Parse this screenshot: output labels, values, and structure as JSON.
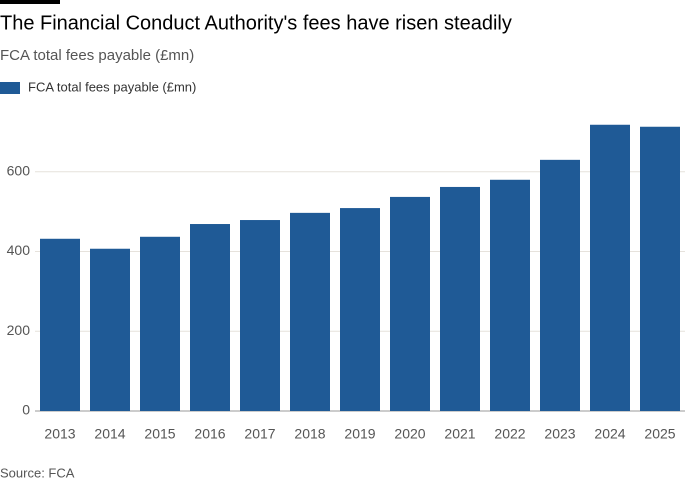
{
  "chart_data": {
    "type": "bar",
    "title": "The Financial Conduct Authority's fees have risen steadily",
    "subtitle": "FCA total fees payable (£mn)",
    "source": "Source: FCA",
    "categories": [
      "2013",
      "2014",
      "2015",
      "2016",
      "2017",
      "2018",
      "2019",
      "2020",
      "2021",
      "2022",
      "2023",
      "2024",
      "2025"
    ],
    "series": [
      {
        "name": "FCA total fees payable (£mn)",
        "color": "#1f5a96",
        "values": [
          432,
          407,
          437,
          469,
          479,
          497,
          509,
          537,
          562,
          580,
          630,
          718,
          713
        ]
      }
    ],
    "ylim": [
      0,
      750
    ],
    "yticks": [
      0,
      200,
      400,
      600
    ],
    "grid": true
  }
}
